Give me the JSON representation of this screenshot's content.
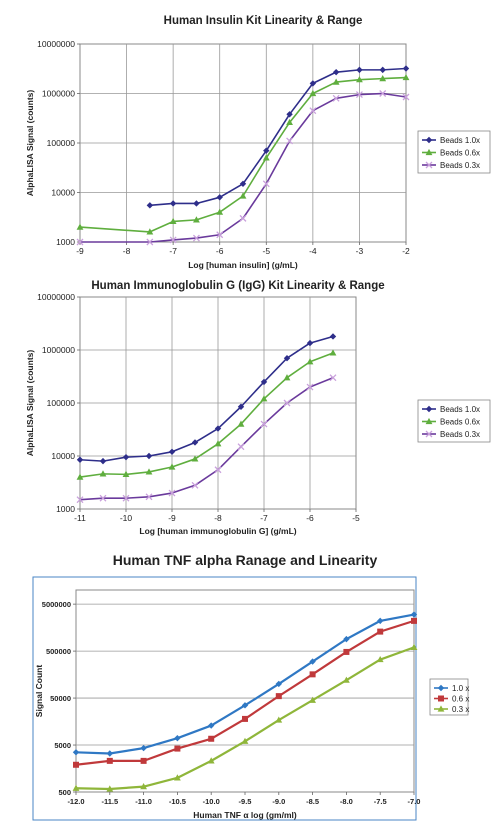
{
  "chart_data": [
    {
      "type": "line",
      "title": "Human Insulin Kit Linearity & Range",
      "xlabel": "Log [human insulin] (g/mL)",
      "ylabel": "AlphaLISA Signal (counts)",
      "xlim": [
        -9,
        -2
      ],
      "ylim": [
        1000,
        10000000
      ],
      "yscale": "log",
      "grid": true,
      "legend_position": "right",
      "xticks": [
        "-9",
        "-8",
        "-7",
        "-6",
        "-5",
        "-4",
        "-3",
        "-2"
      ],
      "yticks": [
        "1000",
        "10000",
        "100000",
        "1000000",
        "10000000"
      ],
      "series": [
        {
          "name": "Beads 1.0x",
          "color": "#2e2e8a",
          "marker": "diamond",
          "x": [
            -7.5,
            -7.0,
            -6.5,
            -6.0,
            -5.5,
            -5.0,
            -4.5,
            -4.0,
            -3.5,
            -3.0,
            -2.5,
            -2.0
          ],
          "y": [
            5500,
            6000,
            6000,
            8000,
            15000,
            70000,
            380000,
            1600000,
            2700000,
            3000000,
            3000000,
            3200000
          ]
        },
        {
          "name": "Beads 0.6x",
          "color": "#5fae3e",
          "marker": "triangle",
          "x": [
            -9.0,
            -7.5,
            -7.0,
            -6.5,
            -6.0,
            -5.5,
            -5.0,
            -4.5,
            -4.0,
            -3.5,
            -3.0,
            -2.5,
            -2.0
          ],
          "y": [
            2000,
            1600,
            2600,
            2800,
            4000,
            8500,
            50000,
            260000,
            1000000,
            1700000,
            1900000,
            2000000,
            2100000
          ]
        },
        {
          "name": "Beads 0.3x",
          "color": "#6a3a9c",
          "marker": "x",
          "x": [
            -9.0,
            -7.5,
            -7.0,
            -6.5,
            -6.0,
            -5.5,
            -5.0,
            -4.5,
            -4.0,
            -3.5,
            -3.0,
            -2.5,
            -2.0
          ],
          "y": [
            1000,
            1000,
            1100,
            1200,
            1400,
            3000,
            15000,
            110000,
            450000,
            800000,
            950000,
            1000000,
            850000
          ]
        }
      ]
    },
    {
      "type": "line",
      "title": "Human Immunoglobulin G (IgG) Kit Linearity & Range",
      "xlabel": "Log [human immunoglobulin G] (g/mL)",
      "ylabel": "AlphaLISA Signal (counts)",
      "xlim": [
        -11,
        -5
      ],
      "ylim": [
        1000,
        10000000
      ],
      "yscale": "log",
      "grid": true,
      "legend_position": "right",
      "xticks": [
        "-11",
        "-10",
        "-9",
        "-8",
        "-7",
        "-6",
        "-5"
      ],
      "yticks": [
        "1000",
        "10000",
        "100000",
        "1000000",
        "10000000"
      ],
      "series": [
        {
          "name": "Beads 1.0x",
          "color": "#2e2e8a",
          "marker": "diamond",
          "x": [
            -11.0,
            -10.5,
            -10.0,
            -9.5,
            -9.0,
            -8.5,
            -8.0,
            -7.5,
            -7.0,
            -6.5,
            -6.0,
            -5.5
          ],
          "y": [
            8500,
            8000,
            9500,
            10000,
            12000,
            18000,
            33000,
            85000,
            250000,
            700000,
            1350000,
            1800000
          ]
        },
        {
          "name": "Beads 0.6x",
          "color": "#5fae3e",
          "marker": "triangle",
          "x": [
            -11.0,
            -10.5,
            -10.0,
            -9.5,
            -9.0,
            -8.5,
            -8.0,
            -7.5,
            -7.0,
            -6.5,
            -6.0,
            -5.5
          ],
          "y": [
            4000,
            4600,
            4500,
            5000,
            6200,
            8800,
            17000,
            40000,
            120000,
            300000,
            600000,
            880000
          ]
        },
        {
          "name": "Beads 0.3x",
          "color": "#6a3a9c",
          "marker": "x",
          "x": [
            -11.0,
            -10.5,
            -10.0,
            -9.5,
            -9.0,
            -8.5,
            -8.0,
            -7.5,
            -7.0,
            -6.5,
            -6.0,
            -5.5
          ],
          "y": [
            1500,
            1600,
            1600,
            1700,
            2000,
            2800,
            5500,
            15000,
            40000,
            100000,
            200000,
            300000
          ]
        }
      ]
    },
    {
      "type": "line",
      "title": "Human TNF alpha Ranage and Linearity",
      "xlabel": "Human TNF α log (gm/ml)",
      "ylabel": "Signal Count",
      "xlim": [
        -12.0,
        -7.0
      ],
      "ylim": [
        500,
        10000000
      ],
      "yscale": "log",
      "grid": "horizontal",
      "legend_position": "right",
      "xticks": [
        "-12.0",
        "-11.5",
        "-11.0",
        "-10.5",
        "-10.0",
        "-9.5",
        "-9.0",
        "-8.5",
        "-8.0",
        "-7.5",
        "-7.0"
      ],
      "yticks": [
        "500",
        "5000",
        "50000",
        "500000",
        "5000000"
      ],
      "series": [
        {
          "name": "1.0 x",
          "color": "#2f78c4",
          "marker": "diamond",
          "x": [
            -12.0,
            -11.5,
            -11.0,
            -10.5,
            -10.0,
            -9.5,
            -9.0,
            -8.5,
            -8.0,
            -7.5,
            -7.0
          ],
          "y": [
            3500,
            3300,
            4300,
            7000,
            13000,
            35000,
            100000,
            300000,
            900000,
            2200000,
            3000000
          ]
        },
        {
          "name": "0.6 x",
          "color": "#c0393b",
          "marker": "square",
          "x": [
            -12.0,
            -11.5,
            -11.0,
            -10.5,
            -10.0,
            -9.5,
            -9.0,
            -8.5,
            -8.0,
            -7.5,
            -7.0
          ],
          "y": [
            1900,
            2300,
            2300,
            4200,
            6800,
            18000,
            55000,
            160000,
            480000,
            1300000,
            2200000
          ]
        },
        {
          "name": "0.3 x",
          "color": "#8fb63a",
          "marker": "triangle",
          "x": [
            -12.0,
            -11.5,
            -11.0,
            -10.5,
            -10.0,
            -9.5,
            -9.0,
            -8.5,
            -8.0,
            -7.5,
            -7.0
          ],
          "y": [
            600,
            580,
            650,
            1000,
            2300,
            6000,
            17000,
            45000,
            120000,
            330000,
            600000
          ]
        }
      ]
    }
  ]
}
